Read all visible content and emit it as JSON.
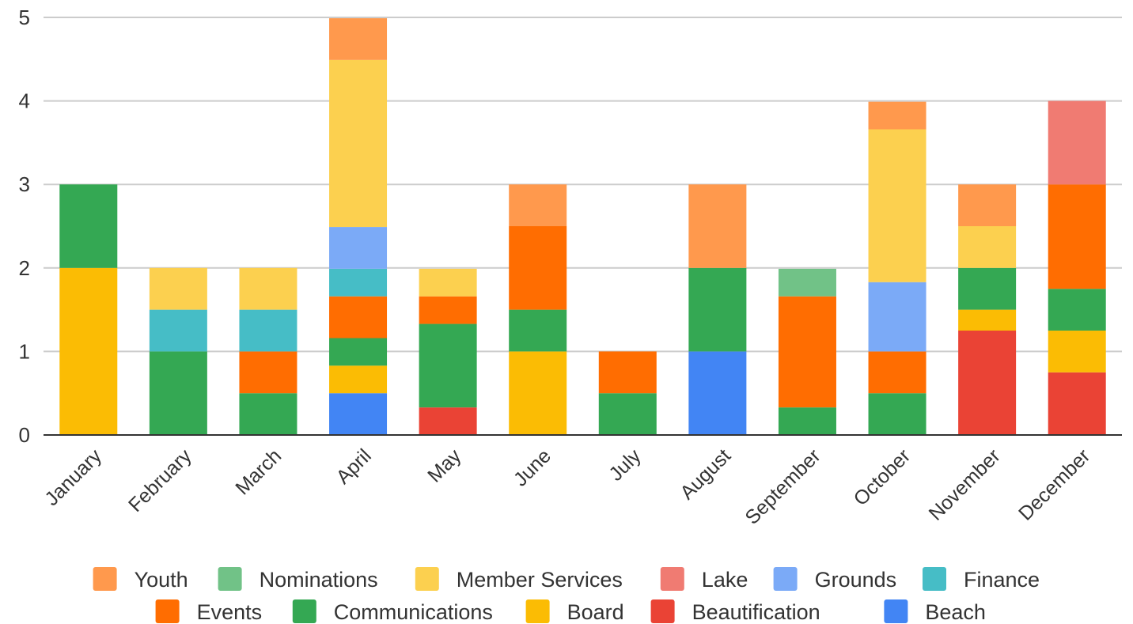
{
  "chart_data": {
    "type": "bar",
    "stacked": true,
    "title": "",
    "xlabel": "",
    "ylabel": "",
    "ylim": [
      0,
      5
    ],
    "yticks": [
      0,
      1,
      2,
      3,
      4,
      5
    ],
    "grid": true,
    "legend_position": "bottom",
    "categories": [
      "January",
      "February",
      "March",
      "April",
      "May",
      "June",
      "July",
      "August",
      "September",
      "October",
      "November",
      "December"
    ],
    "series": [
      {
        "name": "Beach",
        "color": "#4285F4",
        "values": [
          0,
          0,
          0,
          0.5,
          0,
          0,
          0,
          1,
          0,
          0,
          0,
          0
        ]
      },
      {
        "name": "Beautification",
        "color": "#EA4335",
        "values": [
          0,
          0,
          0,
          0,
          0.33,
          0,
          0,
          0,
          0,
          0,
          1.25,
          0.75
        ]
      },
      {
        "name": "Board",
        "color": "#FBBC04",
        "values": [
          2,
          0,
          0,
          0.33,
          0,
          1,
          0,
          0,
          0,
          0,
          0.25,
          0.5
        ]
      },
      {
        "name": "Communications",
        "color": "#34A853",
        "values": [
          1,
          1,
          0.5,
          0.33,
          1,
          0.5,
          0.5,
          1,
          0.33,
          0.5,
          0.5,
          0.5
        ]
      },
      {
        "name": "Events",
        "color": "#FF6D01",
        "values": [
          0,
          0,
          0.5,
          0.5,
          0.33,
          1,
          0.5,
          0,
          1.33,
          0.5,
          0,
          1.25
        ]
      },
      {
        "name": "Finance",
        "color": "#46BDC6",
        "values": [
          0,
          0.5,
          0.5,
          0.33,
          0,
          0,
          0,
          0,
          0,
          0,
          0,
          0
        ]
      },
      {
        "name": "Grounds",
        "color": "#7BAAF7",
        "values": [
          0,
          0,
          0,
          0.5,
          0,
          0,
          0,
          0,
          0,
          0.83,
          0,
          0
        ]
      },
      {
        "name": "Lake",
        "color": "#F07B72",
        "values": [
          0,
          0,
          0,
          0,
          0,
          0,
          0,
          0,
          0,
          0,
          0,
          1
        ]
      },
      {
        "name": "Member Services",
        "color": "#FCD04F",
        "values": [
          0,
          0.5,
          0.5,
          2,
          0.33,
          0,
          0,
          0,
          0,
          1.83,
          0.5,
          0
        ]
      },
      {
        "name": "Nominations",
        "color": "#71C287",
        "values": [
          0,
          0,
          0,
          0,
          0,
          0,
          0,
          0,
          0.33,
          0,
          0,
          0
        ]
      },
      {
        "name": "Youth",
        "color": "#FF994D",
        "values": [
          0,
          0,
          0,
          0.5,
          0,
          0.5,
          0,
          1,
          0,
          0.33,
          0.5,
          0
        ]
      }
    ],
    "legend_order": [
      "Youth",
      "Nominations",
      "Member Services",
      "Lake",
      "Grounds",
      "Finance",
      "Events",
      "Communications",
      "Board",
      "Beautification",
      "Beach"
    ]
  }
}
